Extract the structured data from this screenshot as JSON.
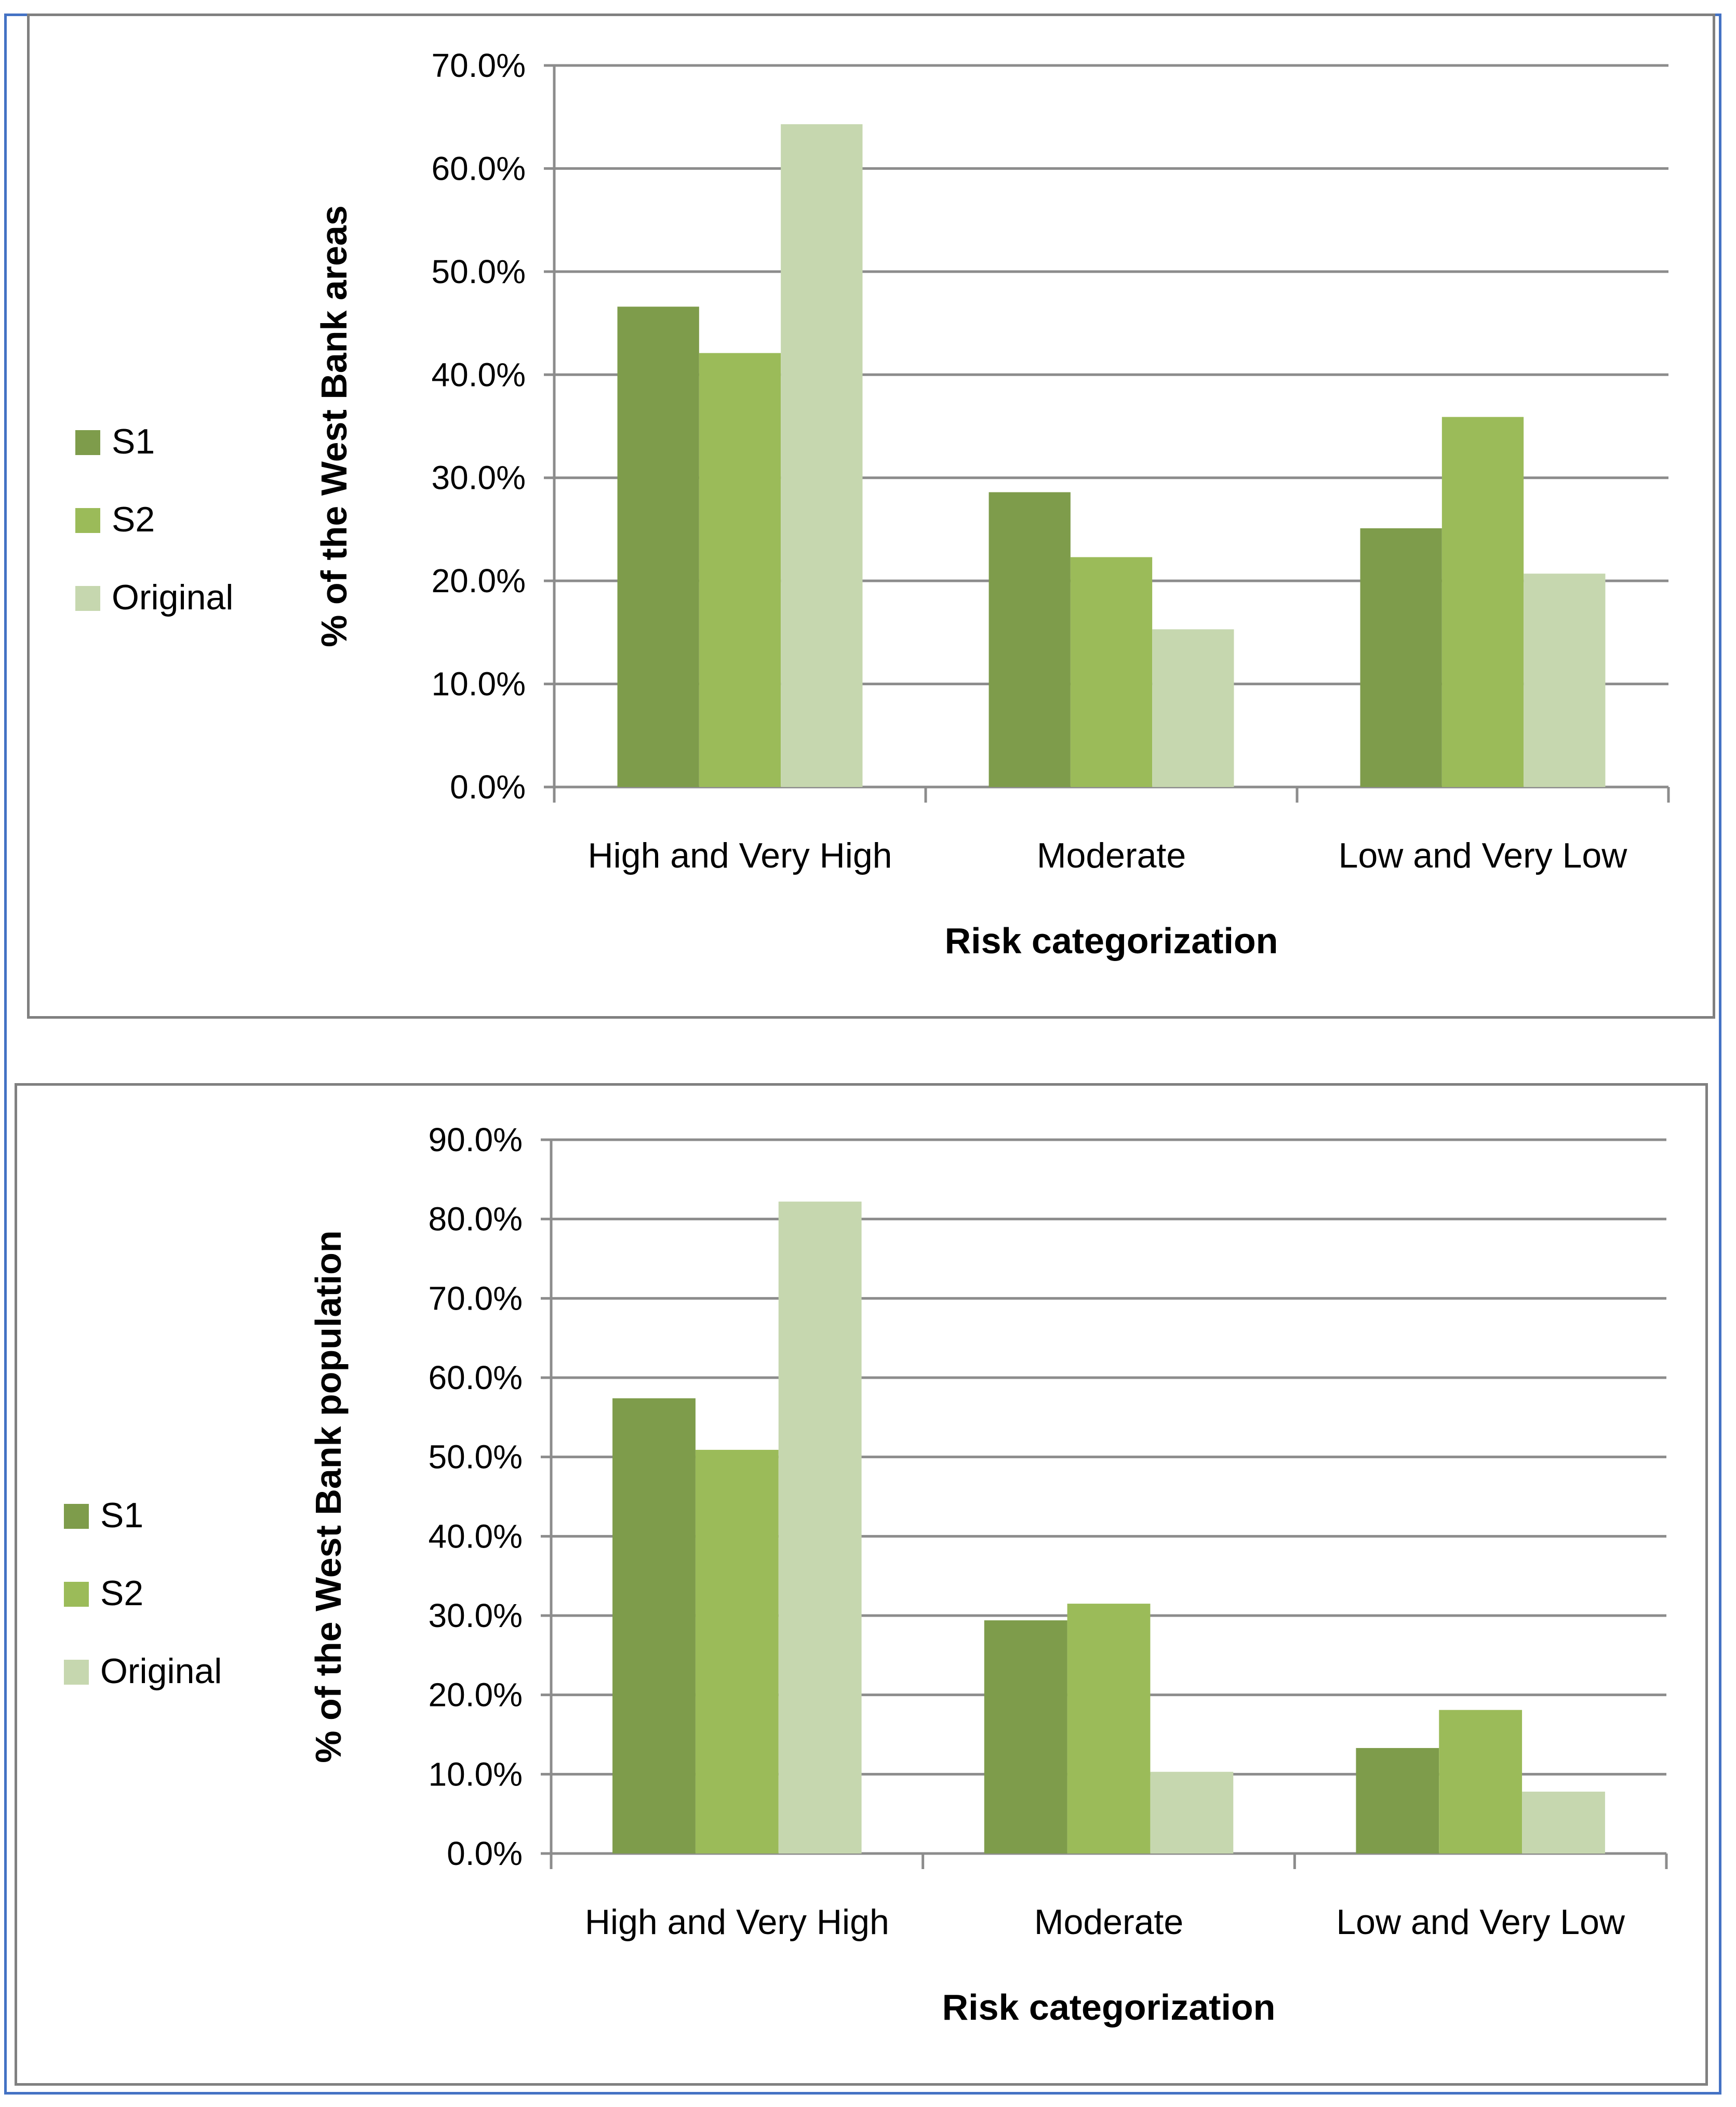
{
  "chart_data": [
    {
      "type": "bar",
      "title": "",
      "categories": [
        "High and Very High",
        "Moderate",
        "Low and  Very Low"
      ],
      "series": [
        {
          "name": "S1",
          "color": "#7e9c4b",
          "values": [
            46.6,
            28.6,
            25.1
          ]
        },
        {
          "name": "S2",
          "color": "#9bbb59",
          "values": [
            42.1,
            22.3,
            35.9
          ]
        },
        {
          "name": "Original",
          "color": "#c6d7af",
          "values": [
            64.3,
            15.3,
            20.7
          ]
        }
      ],
      "xlabel": "Risk categorization",
      "ylabel": "% of the West Bank areas",
      "ylim": [
        0,
        70
      ],
      "yticks": [
        "0.0%",
        "10.0%",
        "20.0%",
        "30.0%",
        "40.0%",
        "50.0%",
        "60.0%",
        "70.0%"
      ],
      "grid": true,
      "legend": "left"
    },
    {
      "type": "bar",
      "title": "",
      "categories": [
        "High and Very High",
        "Moderate",
        "Low and  Very Low"
      ],
      "series": [
        {
          "name": "S1",
          "color": "#7e9c4b",
          "values": [
            57.4,
            29.4,
            13.3
          ]
        },
        {
          "name": "S2",
          "color": "#9bbb59",
          "values": [
            50.9,
            31.5,
            18.1
          ]
        },
        {
          "name": "Original",
          "color": "#c6d7af",
          "values": [
            82.2,
            10.3,
            7.8
          ]
        }
      ],
      "xlabel": "Risk categorization",
      "ylabel": "% of the West Bank population",
      "ylim": [
        0,
        90
      ],
      "yticks": [
        "0.0%",
        "10.0%",
        "20.0%",
        "30.0%",
        "40.0%",
        "50.0%",
        "60.0%",
        "70.0%",
        "80.0%",
        "90.0%"
      ],
      "grid": true,
      "legend": "left"
    }
  ]
}
